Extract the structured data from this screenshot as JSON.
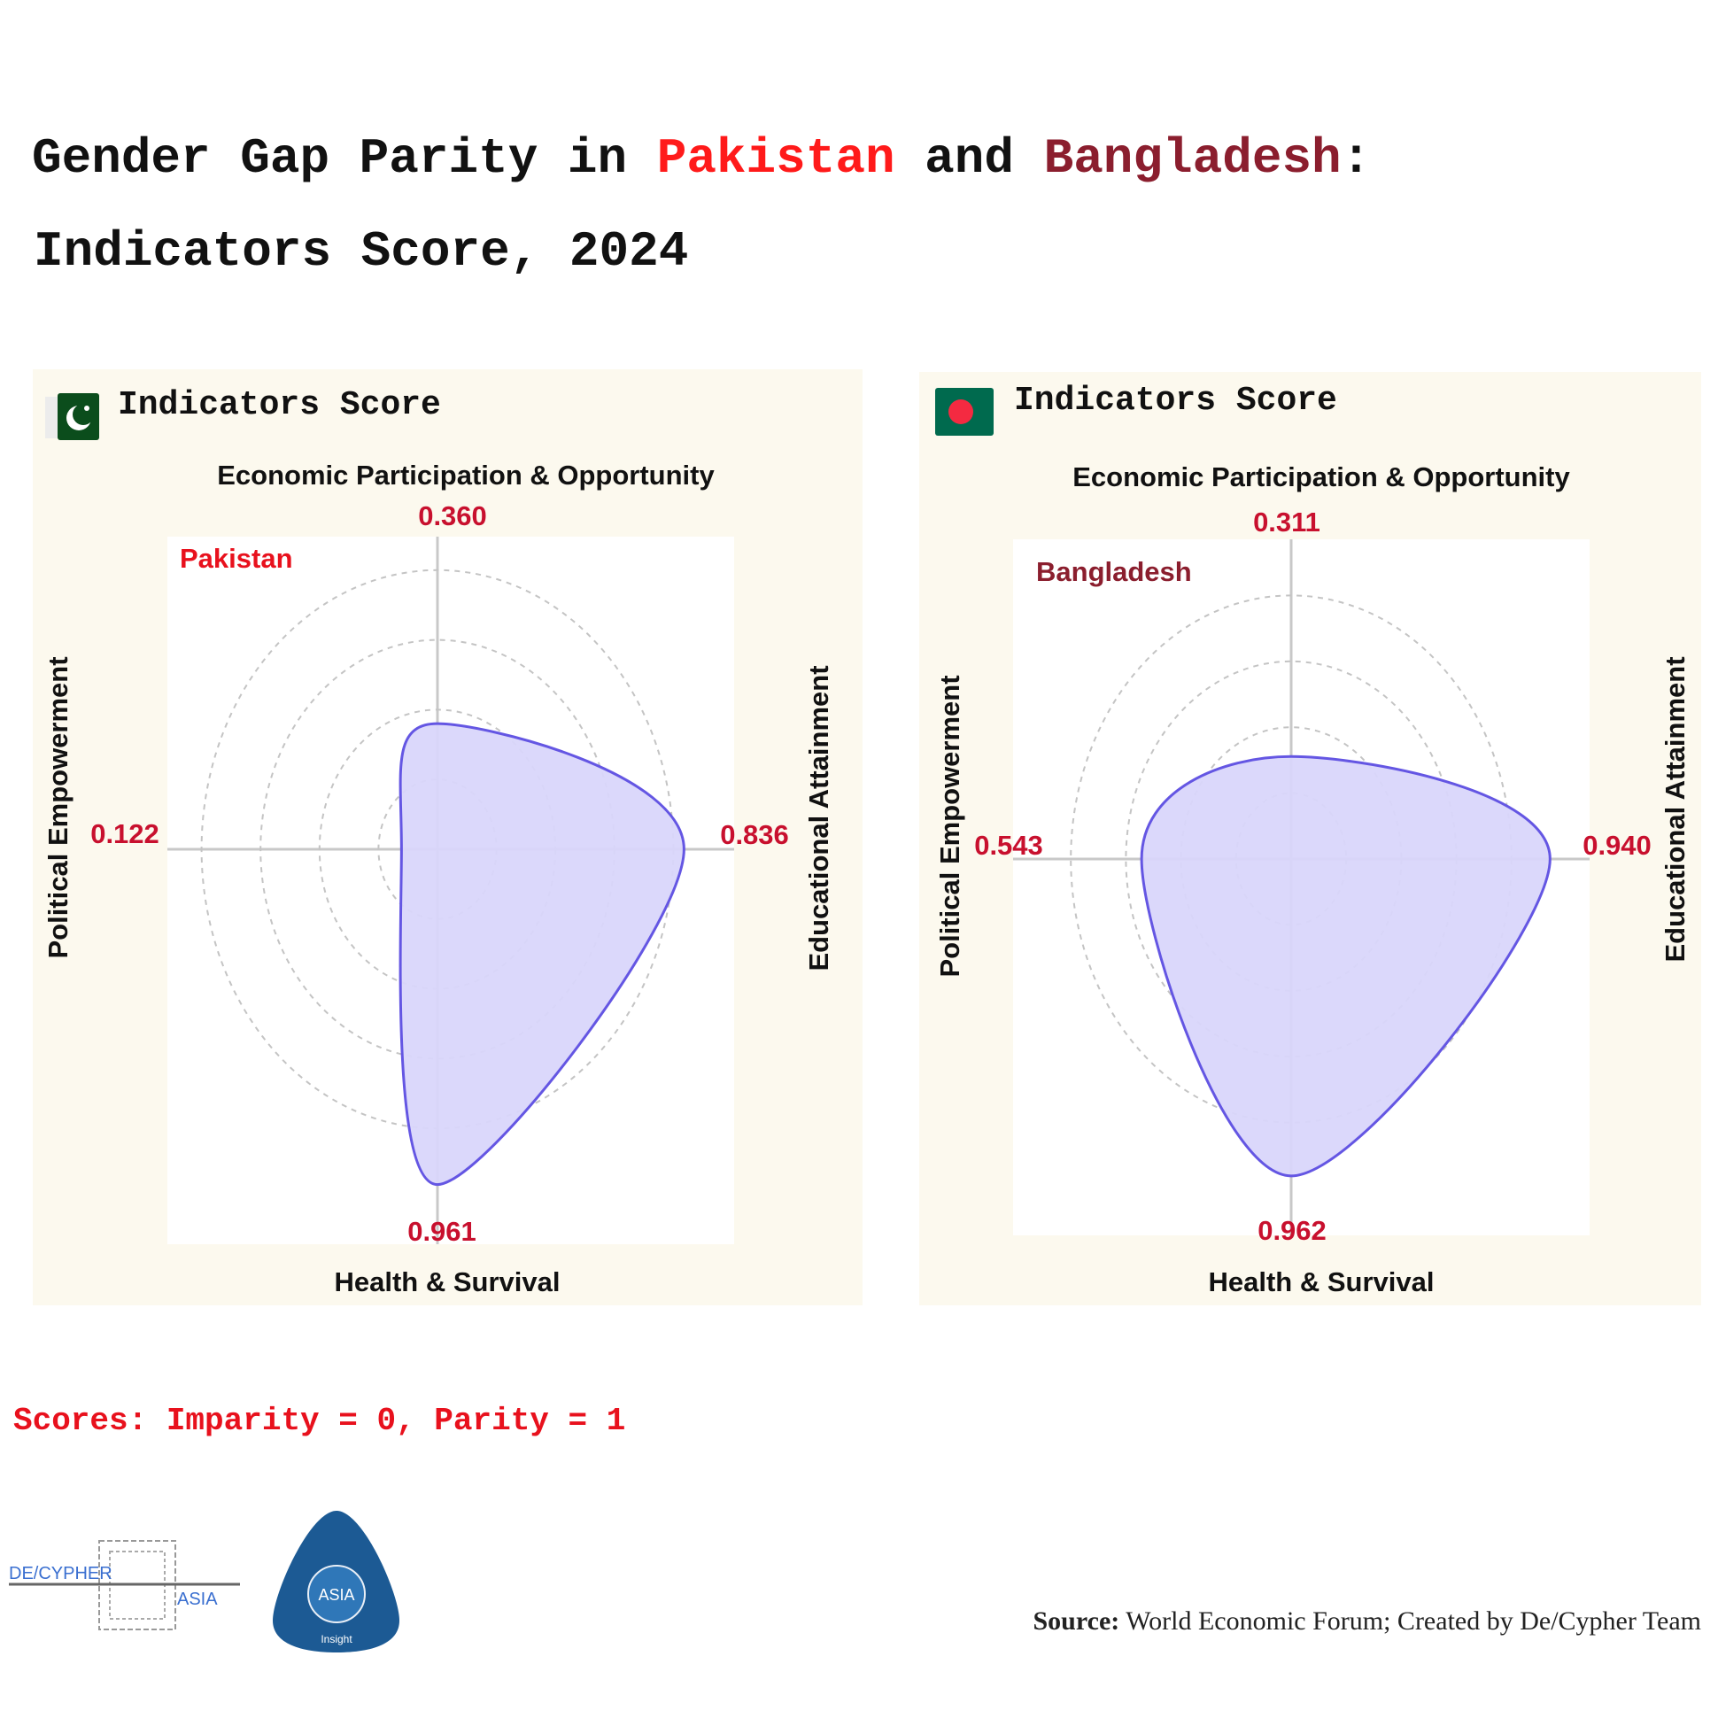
{
  "title": {
    "line1_prefix": "Gender Gap Parity in ",
    "country1": "Pakistan",
    "line1_mid": " and ",
    "country2": "Bangladesh",
    "line1_suffix": ":",
    "line2": "Indicators Score, 2024",
    "country1_color": "#ff1a1a",
    "country2_color": "#8b1e2e"
  },
  "chart_data": [
    {
      "type": "radar",
      "panel_title": "Indicators Score",
      "flag_icon": "pakistan-flag",
      "series_label": "Pakistan",
      "series_label_color": "#e8111d",
      "axes": [
        "Economic Participation & Opportunity",
        "Educational Attainment",
        "Health & Survival",
        "Political Empowerment"
      ],
      "values": [
        0.36,
        0.836,
        0.961,
        0.122
      ],
      "value_labels": [
        "0.360",
        "0.836",
        "0.961",
        "0.122"
      ],
      "grid_rings": [
        0.2,
        0.4,
        0.6,
        0.8
      ],
      "range": [
        0,
        1
      ],
      "fill_color": "#d9d6fb",
      "line_color": "#6456e3"
    },
    {
      "type": "radar",
      "panel_title": "Indicators Score",
      "flag_icon": "bangladesh-flag",
      "series_label": "Bangladesh",
      "series_label_color": "#8b1e2e",
      "axes": [
        "Economic Participation & Opportunity",
        "Educational Attainment",
        "Health & Survival",
        "Political Empowerment"
      ],
      "values": [
        0.311,
        0.94,
        0.962,
        0.543
      ],
      "value_labels": [
        "0.311",
        "0.940",
        "0.962",
        "0.543"
      ],
      "grid_rings": [
        0.2,
        0.4,
        0.6,
        0.8
      ],
      "range": [
        0,
        1
      ],
      "fill_color": "#d9d6fb",
      "line_color": "#6456e3"
    }
  ],
  "scale_note": "Scores: Imparity = 0, Parity = 1",
  "source": {
    "label": "Source:",
    "text": " World Economic Forum; Created by De/Cypher Team"
  },
  "logos": {
    "decypher": "DE/CYPHER ASIA",
    "asia": "ASIA Insight"
  },
  "value_color": "#c8102e"
}
